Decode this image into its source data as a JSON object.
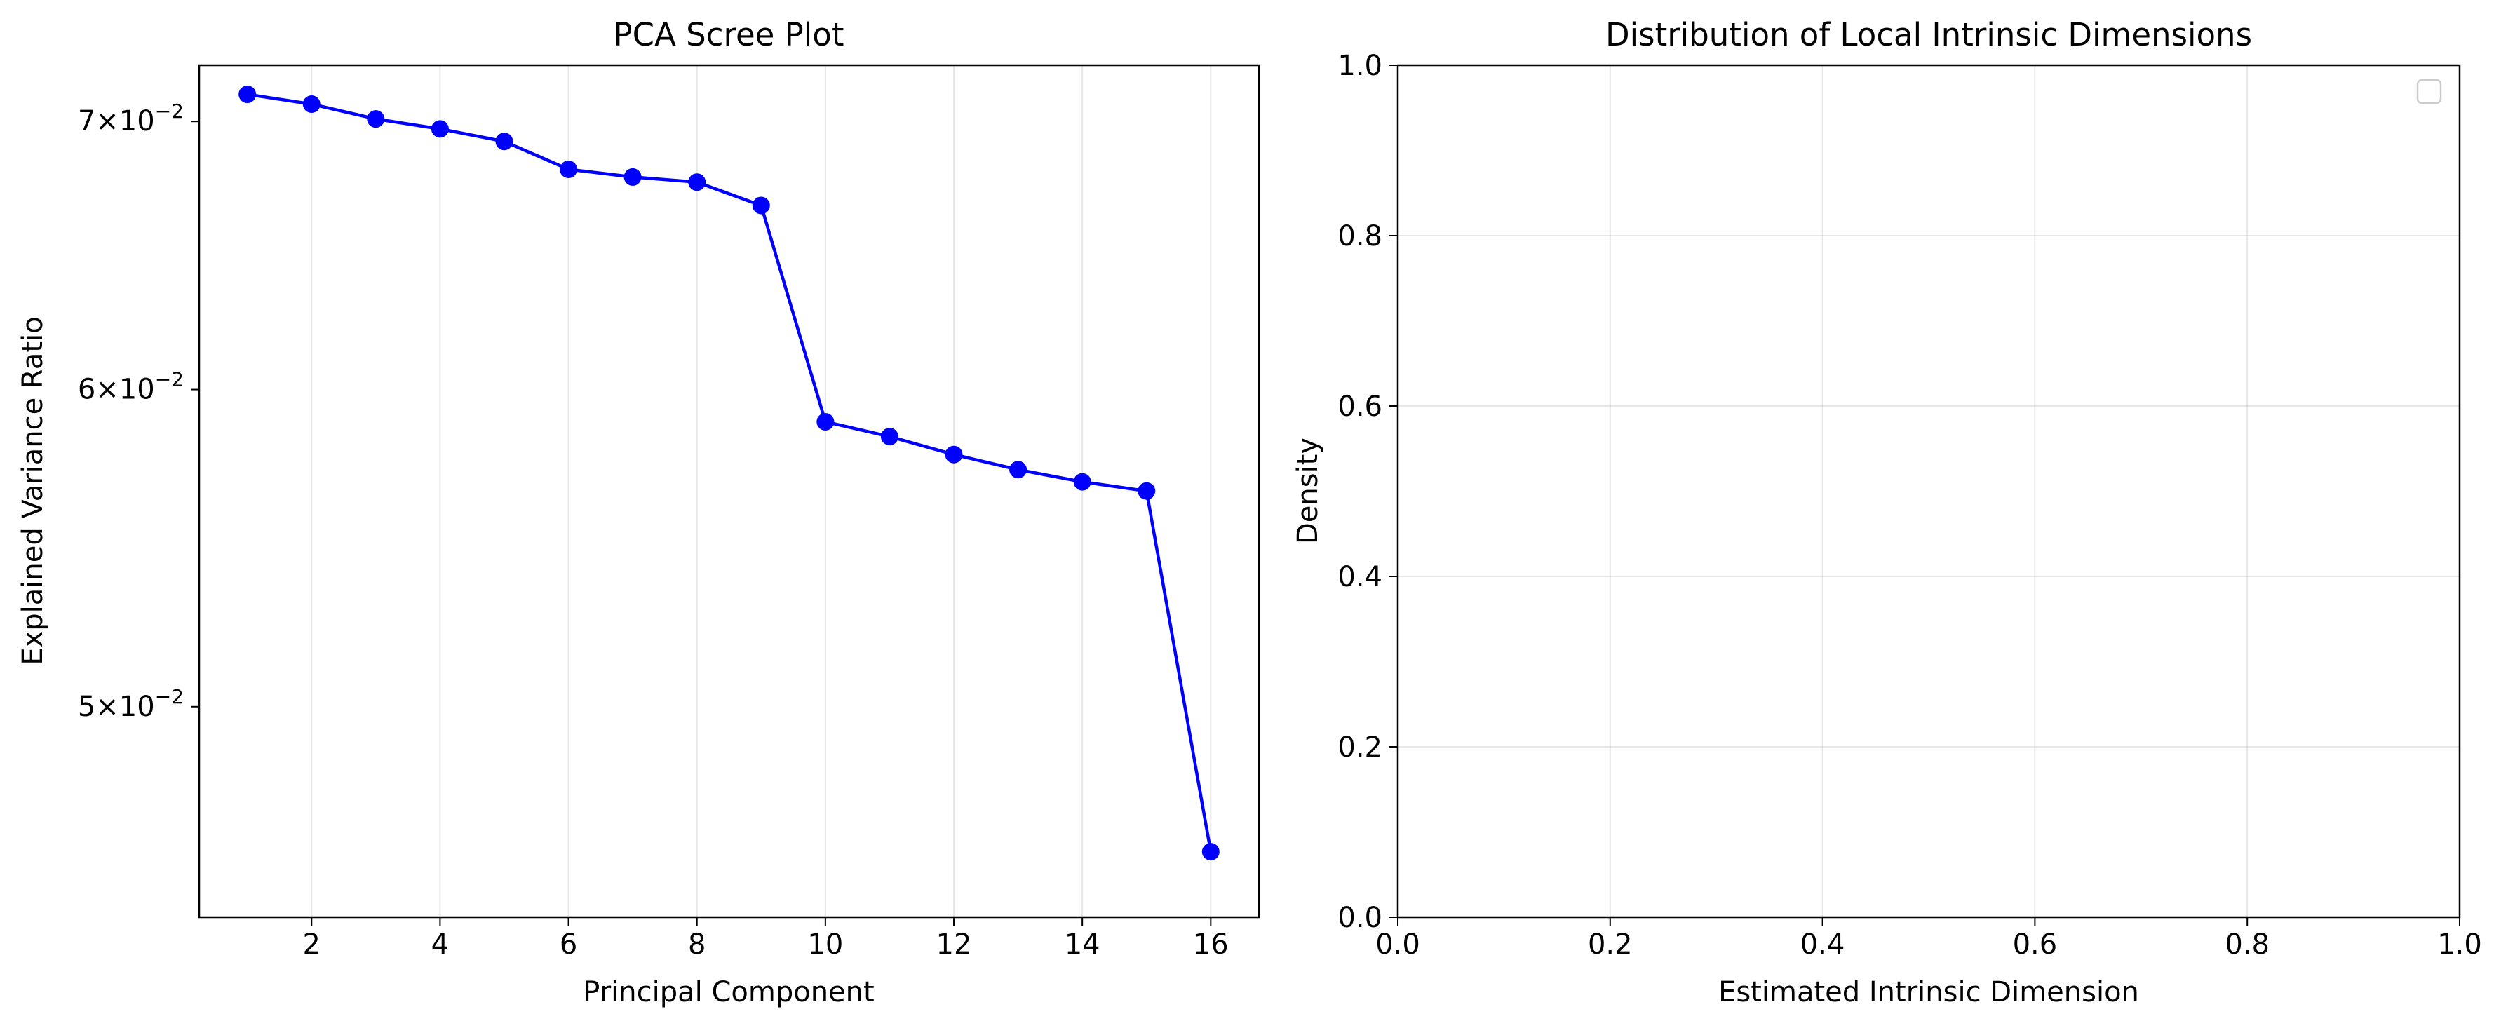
{
  "chart_data": [
    {
      "type": "line",
      "title": "PCA Scree Plot",
      "xlabel": "Principal Component",
      "ylabel": "Explained Variance Ratio",
      "yscale": "log",
      "xlim": [
        0.25,
        16.75
      ],
      "ylim": [
        0.0443,
        0.0723
      ],
      "grid": "x",
      "x_ticks": [
        2,
        4,
        6,
        8,
        10,
        12,
        14,
        16
      ],
      "y_ticks": [
        {
          "value": 0.07,
          "mantissa": "7",
          "base": "10",
          "exp": "−2"
        },
        {
          "value": 0.06,
          "mantissa": "6",
          "base": "10",
          "exp": "−2"
        },
        {
          "value": 0.05,
          "mantissa": "5",
          "base": "10",
          "exp": "−2"
        }
      ],
      "series": [
        {
          "color": "#0000ff",
          "marker": "circle",
          "x": [
            1,
            2,
            3,
            4,
            5,
            6,
            7,
            8,
            9,
            10,
            11,
            12,
            13,
            14,
            15,
            16
          ],
          "y": [
            0.0711,
            0.0707,
            0.0701,
            0.0697,
            0.0692,
            0.0681,
            0.0678,
            0.0676,
            0.0667,
            0.0589,
            0.0584,
            0.0578,
            0.0573,
            0.0569,
            0.0566,
            0.046
          ]
        }
      ]
    },
    {
      "type": "histogram",
      "title": "Distribution of Local Intrinsic Dimensions",
      "xlabel": "Estimated Intrinsic Dimension",
      "ylabel": "Density",
      "xlim": [
        0.0,
        1.0
      ],
      "ylim": [
        0.0,
        1.0
      ],
      "grid": "both",
      "legend": "top-right (empty)",
      "x_ticks": [
        "0.0",
        "0.2",
        "0.4",
        "0.6",
        "0.8",
        "1.0"
      ],
      "y_ticks": [
        "0.0",
        "0.2",
        "0.4",
        "0.6",
        "0.8",
        "1.0"
      ],
      "series": []
    }
  ]
}
